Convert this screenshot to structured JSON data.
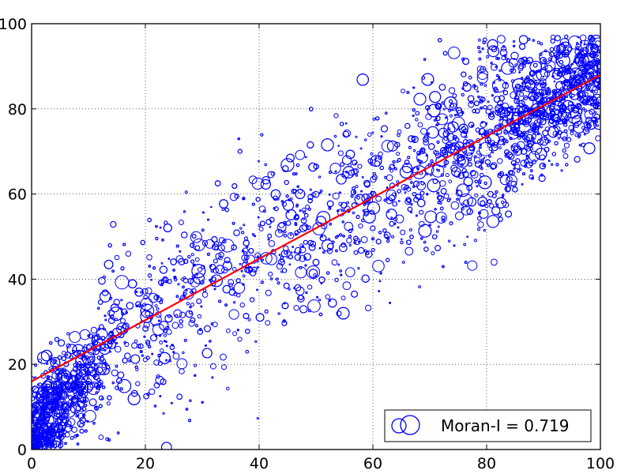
{
  "chart_data": {
    "type": "scatter",
    "title": "",
    "xlabel": "",
    "ylabel": "",
    "xlim": [
      0,
      100
    ],
    "ylim": [
      0,
      100
    ],
    "xticks": [
      "0",
      "20",
      "40",
      "60",
      "80",
      "100"
    ],
    "yticks": [
      "0",
      "20",
      "40",
      "60",
      "80",
      "100"
    ],
    "grid": true,
    "grid_style": "dotted",
    "legend_position": "bottom-right",
    "legend_label": "Moran-I = 0.719",
    "marker": "hollow circle, size varies per point",
    "point_color": "#0000ff",
    "point_count_approx": 9000,
    "point_distribution_samples": [
      {
        "x": 2,
        "y": 4
      },
      {
        "x": 5,
        "y": 8
      },
      {
        "x": 8,
        "y": 12
      },
      {
        "x": 10,
        "y": 28
      },
      {
        "x": 15,
        "y": 22
      },
      {
        "x": 18,
        "y": 40
      },
      {
        "x": 22,
        "y": 30
      },
      {
        "x": 25,
        "y": 48
      },
      {
        "x": 30,
        "y": 35
      },
      {
        "x": 35,
        "y": 52
      },
      {
        "x": 40,
        "y": 45
      },
      {
        "x": 45,
        "y": 38
      },
      {
        "x": 50,
        "y": 55
      },
      {
        "x": 55,
        "y": 62
      },
      {
        "x": 60,
        "y": 58
      },
      {
        "x": 65,
        "y": 70
      },
      {
        "x": 70,
        "y": 66
      },
      {
        "x": 75,
        "y": 76
      },
      {
        "x": 80,
        "y": 80
      },
      {
        "x": 85,
        "y": 84
      },
      {
        "x": 90,
        "y": 88
      },
      {
        "x": 95,
        "y": 86
      },
      {
        "x": 98,
        "y": 90
      }
    ],
    "regression_line": {
      "color": "#ff0000",
      "x": [
        0,
        100
      ],
      "y": [
        16,
        88
      ]
    }
  }
}
